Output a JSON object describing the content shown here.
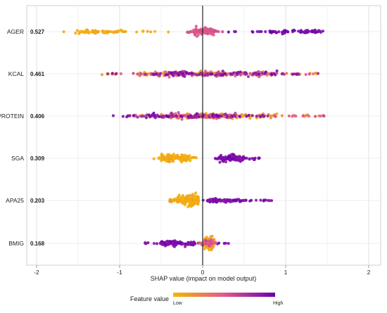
{
  "chart_data": {
    "type": "scatter",
    "subtype": "shap-beeswarm",
    "xlabel": "SHAP value (impact on model output)",
    "xlim": [
      -2,
      2
    ],
    "x_ticks": [
      -2,
      -1,
      0,
      1,
      2
    ],
    "grid": true,
    "legend": {
      "title": "Feature value",
      "low_label": "Low",
      "high_label": "High",
      "placement": "bottom"
    },
    "colors": {
      "low": "#f5b800",
      "mid": "#e05a8a",
      "high": "#6a00b0"
    },
    "features": [
      {
        "name": "AGER",
        "importance": "0.527",
        "low_range": [
          -1.75,
          -0.4
        ],
        "low_core": [
          -1.55,
          -0.95
        ],
        "high_range": [
          0.3,
          1.6
        ],
        "high_core": [
          0.8,
          1.45
        ],
        "mid_range": [
          -0.2,
          0.25
        ]
      },
      {
        "name": "KCAL",
        "importance": "0.461",
        "low_range": [
          -1.25,
          1.4
        ],
        "high_range": [
          -1.2,
          1.4
        ],
        "mid_range": [
          -1.1,
          1.35
        ],
        "low_core": [
          -0.8,
          0.3
        ],
        "high_core": [
          -0.6,
          0.9
        ]
      },
      {
        "name": "PROTEIN",
        "importance": "0.406",
        "low_range": [
          -0.9,
          1.55
        ],
        "high_range": [
          -1.1,
          0.8
        ],
        "mid_range": [
          -0.9,
          1.5
        ],
        "low_core": [
          -0.5,
          0.9
        ],
        "high_core": [
          -0.7,
          0.4
        ]
      },
      {
        "name": "SGA",
        "importance": "0.309",
        "low_range": [
          -0.6,
          -0.05
        ],
        "low_core": [
          -0.5,
          -0.15
        ],
        "high_range": [
          0.15,
          0.7
        ],
        "high_core": [
          0.2,
          0.5
        ]
      },
      {
        "name": "APA25",
        "importance": "0.203",
        "low_range": [
          -0.4,
          -0.05
        ],
        "low_core": [
          -0.3,
          -0.05
        ],
        "high_range": [
          0.0,
          0.85
        ],
        "high_core": [
          0.05,
          0.5
        ]
      },
      {
        "name": "BMIG",
        "importance": "0.168",
        "low_range": [
          0.0,
          0.15
        ],
        "low_core": [
          0.02,
          0.14
        ],
        "high_range": [
          -0.7,
          0.35
        ],
        "high_core": [
          -0.5,
          -0.1
        ]
      }
    ]
  }
}
